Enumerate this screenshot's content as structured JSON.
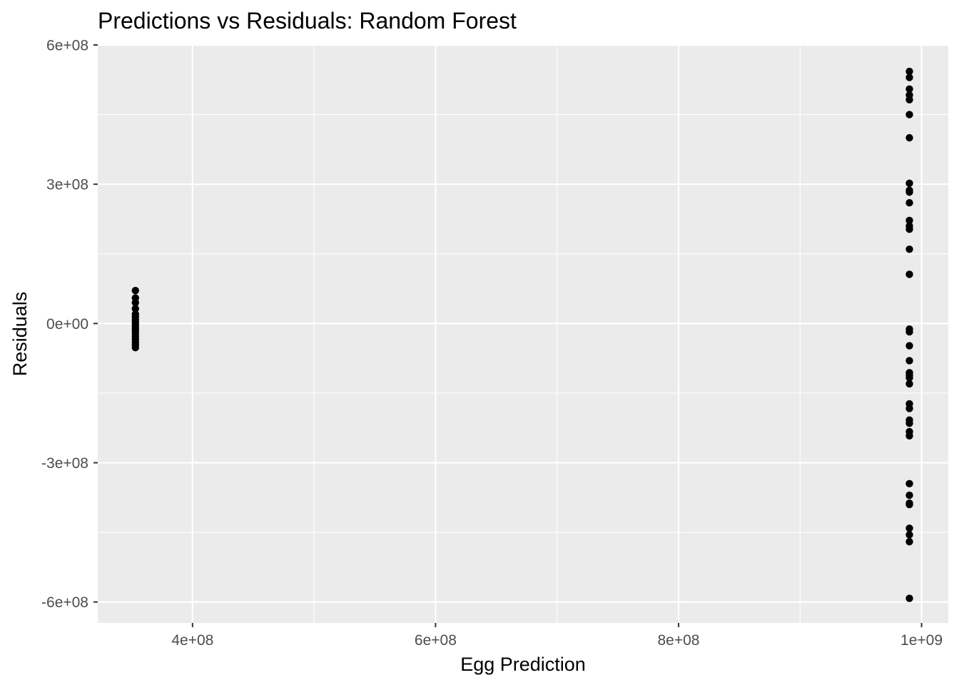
{
  "chart_data": {
    "type": "scatter",
    "title": "Predictions vs Residuals: Random Forest",
    "xlabel": "Egg Prediction",
    "ylabel": "Residuals",
    "xlim": [
      322000000,
      1022000000
    ],
    "ylim": [
      -645000000,
      600000000
    ],
    "x_ticks": [
      {
        "value": 400000000,
        "label": "4e+08"
      },
      {
        "value": 600000000,
        "label": "6e+08"
      },
      {
        "value": 800000000,
        "label": "8e+08"
      },
      {
        "value": 1000000000,
        "label": "1e+09"
      }
    ],
    "y_ticks": [
      {
        "value": 600000000,
        "label": "6e+08"
      },
      {
        "value": 300000000,
        "label": "3e+08"
      },
      {
        "value": 0,
        "label": "0e+00"
      },
      {
        "value": -300000000,
        "label": "-3e+08"
      },
      {
        "value": -600000000,
        "label": "-6e+08"
      }
    ],
    "x_minor_breaks": [
      500000000,
      700000000,
      900000000
    ],
    "y_minor_breaks": [
      450000000,
      150000000,
      -150000000,
      -450000000
    ],
    "grid": true,
    "point_color": "#000000",
    "panel_background": "#ebebeb",
    "grid_color": "#ffffff",
    "points": [
      {
        "x": 353000000,
        "y": 71000000
      },
      {
        "x": 353000000,
        "y": 55000000
      },
      {
        "x": 353000000,
        "y": 45000000
      },
      {
        "x": 353000000,
        "y": 32000000
      },
      {
        "x": 353000000,
        "y": 20000000
      },
      {
        "x": 353000000,
        "y": 14000000
      },
      {
        "x": 353000000,
        "y": 8000000
      },
      {
        "x": 353000000,
        "y": 3000000
      },
      {
        "x": 353000000,
        "y": -2000000
      },
      {
        "x": 353000000,
        "y": -7000000
      },
      {
        "x": 353000000,
        "y": -12000000
      },
      {
        "x": 353000000,
        "y": -17000000
      },
      {
        "x": 353000000,
        "y": -22000000
      },
      {
        "x": 353000000,
        "y": -28000000
      },
      {
        "x": 353000000,
        "y": -34000000
      },
      {
        "x": 353000000,
        "y": -40000000
      },
      {
        "x": 353000000,
        "y": -46000000
      },
      {
        "x": 353000000,
        "y": -52000000
      },
      {
        "x": 990000000,
        "y": 543000000
      },
      {
        "x": 990000000,
        "y": 530000000
      },
      {
        "x": 990000000,
        "y": 505000000
      },
      {
        "x": 990000000,
        "y": 492000000
      },
      {
        "x": 990000000,
        "y": 482000000
      },
      {
        "x": 990000000,
        "y": 450000000
      },
      {
        "x": 990000000,
        "y": 400000000
      },
      {
        "x": 990000000,
        "y": 302000000
      },
      {
        "x": 990000000,
        "y": 287000000
      },
      {
        "x": 990000000,
        "y": 283000000
      },
      {
        "x": 990000000,
        "y": 260000000
      },
      {
        "x": 990000000,
        "y": 222000000
      },
      {
        "x": 990000000,
        "y": 210000000
      },
      {
        "x": 990000000,
        "y": 203000000
      },
      {
        "x": 990000000,
        "y": 160000000
      },
      {
        "x": 990000000,
        "y": 106000000
      },
      {
        "x": 990000000,
        "y": -12000000
      },
      {
        "x": 990000000,
        "y": -18000000
      },
      {
        "x": 990000000,
        "y": -48000000
      },
      {
        "x": 990000000,
        "y": -80000000
      },
      {
        "x": 990000000,
        "y": -106000000
      },
      {
        "x": 990000000,
        "y": -111000000
      },
      {
        "x": 990000000,
        "y": -117000000
      },
      {
        "x": 990000000,
        "y": -130000000
      },
      {
        "x": 990000000,
        "y": -173000000
      },
      {
        "x": 990000000,
        "y": -183000000
      },
      {
        "x": 990000000,
        "y": -208000000
      },
      {
        "x": 990000000,
        "y": -215000000
      },
      {
        "x": 990000000,
        "y": -233000000
      },
      {
        "x": 990000000,
        "y": -242000000
      },
      {
        "x": 990000000,
        "y": -345000000
      },
      {
        "x": 990000000,
        "y": -370000000
      },
      {
        "x": 990000000,
        "y": -387000000
      },
      {
        "x": 990000000,
        "y": -390000000
      },
      {
        "x": 990000000,
        "y": -441000000
      },
      {
        "x": 990000000,
        "y": -455000000
      },
      {
        "x": 990000000,
        "y": -470000000
      },
      {
        "x": 990000000,
        "y": -592000000
      }
    ]
  }
}
